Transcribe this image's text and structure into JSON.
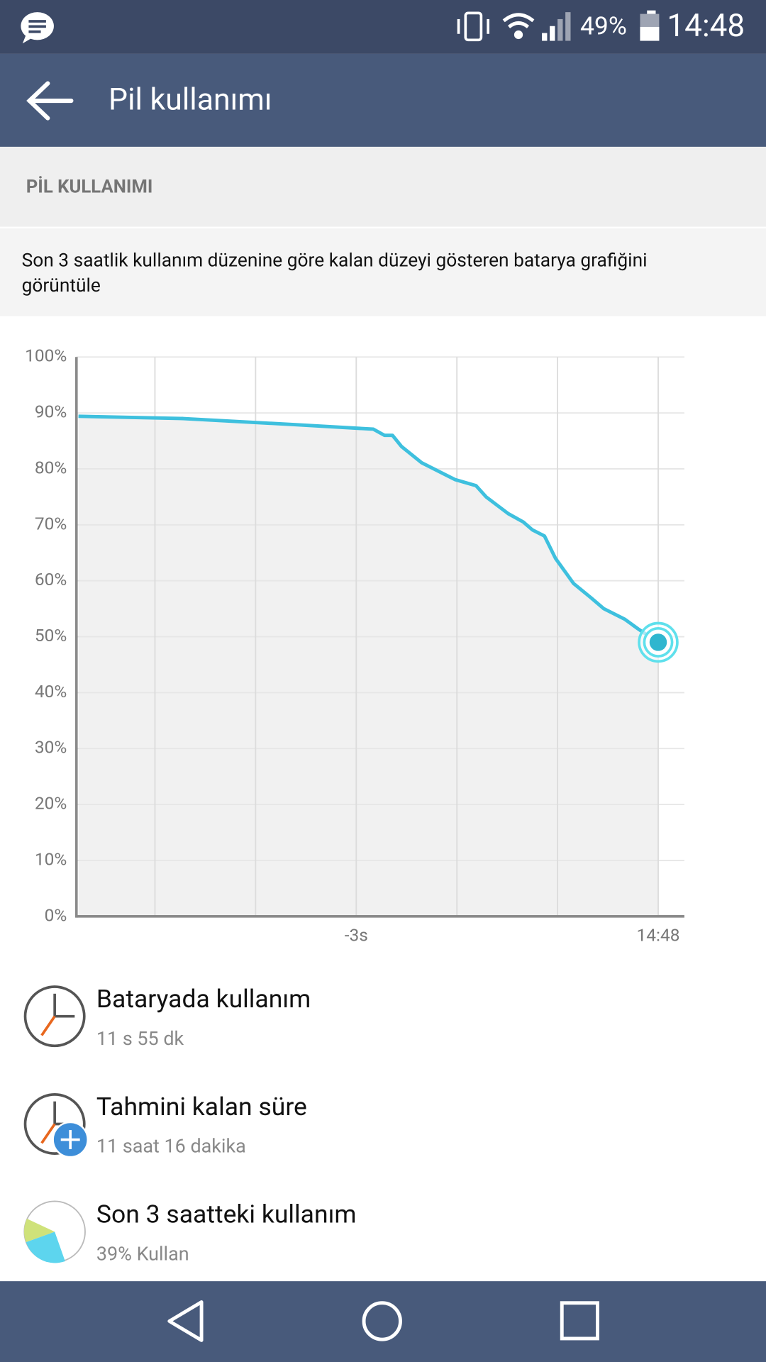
{
  "status_bar": {
    "battery": "49%",
    "time": "14:48"
  },
  "app_bar": {
    "title": "Pil kullanımı"
  },
  "section": {
    "header": "PİL KULLANIMI",
    "description_line1": "Son 3 saatlik kullanım düzenine göre kalan düzeyi gösteren batarya grafiğini",
    "description_line2": "görüntüle"
  },
  "chart_data": {
    "type": "line",
    "color": "#3ec0de",
    "x": [
      -5.76,
      -4.72,
      -3.6,
      -2.83,
      -2.72,
      -2.64,
      -2.55,
      -2.35,
      -2.12,
      -2.02,
      -1.81,
      -1.71,
      -1.49,
      -1.34,
      -1.25,
      -1.13,
      -1.02,
      -0.84,
      -0.67,
      -0.54,
      -0.33,
      -0.2,
      0
    ],
    "values": [
      89.4,
      89,
      87.9,
      87.1,
      86,
      86,
      84,
      81.1,
      79,
      78.1,
      77,
      75,
      72,
      70.5,
      69.1,
      68,
      64,
      59.5,
      57,
      55,
      53.1,
      51.4,
      49
    ],
    "xlim": [
      -5.78,
      0.26
    ],
    "xticks": [
      {
        "value": -5,
        "label": null
      },
      {
        "value": -4,
        "label": null
      },
      {
        "value": -3,
        "label": "-3s"
      },
      {
        "value": -2,
        "label": null
      },
      {
        "value": -1,
        "label": null
      },
      {
        "value": 0,
        "label": "14:48"
      }
    ],
    "ylim": [
      0,
      100
    ],
    "yticks": [
      {
        "value": 0,
        "label": "0%"
      },
      {
        "value": 10,
        "label": "10%"
      },
      {
        "value": 20,
        "label": "20%"
      },
      {
        "value": 30,
        "label": "30%"
      },
      {
        "value": 40,
        "label": "40%"
      },
      {
        "value": 50,
        "label": "50%"
      },
      {
        "value": 60,
        "label": "60%"
      },
      {
        "value": 70,
        "label": "70%"
      },
      {
        "value": 80,
        "label": "80%"
      },
      {
        "value": 90,
        "label": "90%"
      },
      {
        "value": 100,
        "label": "100%"
      }
    ],
    "grid": true
  },
  "items": [
    {
      "title": "Bataryada kullanım",
      "subtitle": "11 s 55 dk"
    },
    {
      "title": "Tahmini kalan süre",
      "subtitle": "11 saat 16 dakika"
    },
    {
      "title": "Son 3 saatteki kullanım",
      "subtitle": "39% Kullan"
    }
  ]
}
